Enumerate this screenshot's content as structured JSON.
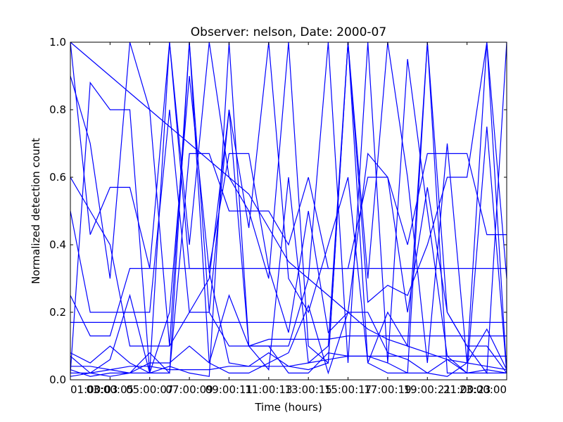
{
  "chart_data": {
    "type": "line",
    "title": "Observer: nelson, Date: 2000-07",
    "xlabel": "Time (hours)",
    "ylabel": "Normalized detection count",
    "x_ticks": [
      "01:00:03",
      "03:00:05",
      "05:00:07",
      "07:00:09",
      "09:00:11",
      "11:00:13",
      "13:00:15",
      "15:00:17",
      "17:00:19",
      "19:00:21",
      "21:00:23",
      "23:00:00"
    ],
    "xlim": [
      1,
      23
    ],
    "ylim": [
      0,
      1
    ],
    "y_ticks": [
      "0.0",
      "0.2",
      "0.4",
      "0.6",
      "0.8",
      "1.0"
    ],
    "line_color": "#0000ff",
    "series": [
      {
        "x": [
          1,
          2,
          3,
          4,
          5,
          6,
          7,
          8,
          9,
          10,
          11,
          12,
          13,
          14,
          15,
          16,
          17,
          18,
          19,
          20,
          21,
          22,
          23
        ],
        "y": [
          0.02,
          0.02,
          0.03,
          0.02,
          0.02,
          0.04,
          0.02,
          0.01,
          1.0,
          0.1,
          0.03,
          0.6,
          0.05,
          0.1,
          1.0,
          0.05,
          0.02,
          0.02,
          1.0,
          0.02,
          0.02,
          0.03,
          0.02
        ]
      },
      {
        "x": [
          1,
          2,
          3,
          4,
          5,
          6,
          7,
          8,
          9,
          10,
          11,
          12,
          13,
          14,
          15,
          16,
          17,
          18,
          19,
          20,
          21,
          22,
          23
        ],
        "y": [
          1.0,
          0.43,
          0.57,
          0.57,
          0.33,
          1.0,
          0.33,
          0.33,
          0.67,
          0.67,
          0.33,
          0.14,
          0.5,
          0.14,
          0.2,
          0.67,
          0.6,
          0.2,
          0.57,
          0.2,
          0.1,
          0.1,
          0.02
        ]
      },
      {
        "x": [
          1,
          2,
          3,
          4,
          5,
          6,
          7,
          8,
          9,
          10,
          11,
          12,
          13,
          14,
          15,
          16,
          17,
          18,
          19,
          20,
          21,
          22,
          23
        ],
        "y": [
          0.9,
          0.7,
          0.3,
          1.0,
          0.8,
          0.1,
          1.0,
          0.2,
          0.8,
          0.45,
          1.0,
          0.3,
          0.2,
          0.4,
          0.6,
          0.05,
          0.2,
          0.1,
          1.0,
          0.2,
          0.1,
          0.02,
          1.0
        ]
      },
      {
        "x": [
          1,
          2,
          3,
          4,
          5,
          6,
          7,
          8,
          9,
          10,
          11,
          12,
          13,
          14,
          15,
          16,
          17,
          18,
          19,
          20,
          21,
          22,
          23
        ],
        "y": [
          0.02,
          0.88,
          0.8,
          0.8,
          0.02,
          1.0,
          0.4,
          1.0,
          0.6,
          0.5,
          0.3,
          1.0,
          0.1,
          0.05,
          1.0,
          0.3,
          1.0,
          0.6,
          0.05,
          0.7,
          0.05,
          1.0,
          0.02
        ]
      },
      {
        "x": [
          1,
          2,
          3,
          4,
          5,
          6,
          7,
          8,
          9,
          10,
          11,
          12,
          13,
          14,
          15,
          16,
          17,
          18,
          19,
          20,
          21,
          22,
          23
        ],
        "y": [
          0.5,
          0.2,
          0.2,
          0.2,
          0.2,
          0.8,
          0.2,
          0.3,
          0.8,
          0.1,
          0.1,
          0.1,
          0.3,
          1.0,
          0.05,
          1.0,
          0.05,
          0.95,
          0.5,
          0.07,
          0.02,
          0.75,
          0.02
        ]
      },
      {
        "x": [
          1,
          2,
          3,
          4,
          5,
          6,
          7,
          8,
          9,
          10,
          11,
          12,
          13,
          14,
          15,
          16,
          17,
          18,
          19,
          20,
          21,
          22,
          23
        ],
        "y": [
          0.07,
          0.02,
          0.06,
          0.25,
          0.02,
          0.02,
          0.67,
          0.67,
          0.5,
          0.5,
          0.5,
          0.4,
          0.6,
          0.33,
          0.33,
          0.6,
          0.6,
          0.4,
          0.67,
          0.67,
          0.67,
          0.43,
          0.43
        ]
      },
      {
        "x": [
          1,
          2,
          3,
          4,
          5,
          6,
          7,
          8,
          9,
          10,
          11,
          12,
          13,
          14,
          15,
          16,
          17,
          18,
          19,
          20,
          21,
          22,
          23
        ],
        "y": [
          0.25,
          0.13,
          0.13,
          0.33,
          0.33,
          0.33,
          0.33,
          0.33,
          0.33,
          0.33,
          0.33,
          0.33,
          0.33,
          0.33,
          0.33,
          0.33,
          0.33,
          0.33,
          0.33,
          0.33,
          0.33,
          0.33,
          0.33
        ]
      },
      {
        "x": [
          1,
          2,
          3,
          4,
          5,
          6,
          7,
          8,
          9,
          10,
          11,
          12,
          13,
          14,
          15,
          16,
          17,
          18,
          19,
          20,
          21,
          22,
          23
        ],
        "y": [
          0.17,
          0.17,
          0.17,
          0.17,
          0.17,
          0.17,
          0.17,
          0.17,
          0.17,
          0.17,
          0.17,
          0.17,
          0.17,
          0.17,
          0.17,
          0.17,
          0.17,
          0.17,
          0.17,
          0.17,
          0.17,
          0.17,
          0.17
        ]
      },
      {
        "x": [
          1,
          2,
          3,
          4,
          5,
          6,
          7,
          8,
          9,
          10,
          11,
          12,
          13,
          14,
          15,
          16,
          17,
          18,
          19,
          20,
          21,
          22,
          23
        ],
        "y": [
          0.08,
          0.05,
          0.1,
          0.05,
          0.02,
          0.2,
          0.9,
          0.32,
          0.05,
          0.04,
          0.08,
          0.04,
          0.03,
          0.05,
          1.0,
          0.23,
          0.28,
          0.25,
          0.4,
          0.6,
          0.6,
          1.0,
          0.3
        ]
      },
      {
        "x": [
          1,
          2,
          3,
          4,
          5,
          6,
          7,
          8,
          9,
          10,
          11,
          12,
          13,
          14,
          15,
          16,
          17,
          18,
          19,
          20,
          21,
          22,
          23
        ],
        "y": [
          0.6,
          0.5,
          0.4,
          0.1,
          0.1,
          0.1,
          0.2,
          0.2,
          0.1,
          0.1,
          0.12,
          0.12,
          0.12,
          0.12,
          0.13,
          0.13,
          0.13,
          0.13,
          0.13,
          0.13,
          0.13,
          0.13,
          0.13
        ]
      },
      {
        "x": [
          1,
          2,
          3,
          4,
          5,
          6,
          7,
          8,
          9,
          10,
          11,
          12,
          13,
          14,
          15,
          16,
          17,
          18,
          19,
          20,
          21,
          22,
          23
        ],
        "y": [
          0.03,
          0.01,
          0.02,
          0.02,
          0.08,
          0.02,
          1.0,
          0.05,
          0.25,
          0.1,
          0.1,
          0.02,
          0.02,
          0.08,
          0.07,
          0.07,
          0.05,
          0.02,
          0.02,
          0.01,
          0.05,
          0.15,
          0.03
        ]
      },
      {
        "x": [
          1,
          2,
          3,
          4,
          5,
          6,
          7,
          8,
          9,
          10,
          11,
          12,
          13,
          14,
          15,
          16,
          17,
          18,
          19,
          20,
          21,
          22,
          23
        ],
        "y": [
          0.01,
          0.02,
          0.01,
          0.02,
          0.05,
          0.05,
          0.1,
          0.05,
          0.02,
          0.02,
          0.05,
          0.08,
          0.22,
          0.02,
          0.2,
          0.2,
          0.08,
          0.06,
          0.02,
          0.06,
          0.02,
          0.02,
          0.02
        ]
      },
      {
        "x": [
          1,
          2,
          3,
          4,
          5,
          6,
          7,
          8,
          9,
          10,
          11,
          12,
          13,
          14,
          15,
          16,
          17,
          18,
          19,
          20,
          21,
          22,
          23
        ],
        "y": [
          1.0,
          0.95,
          0.9,
          0.85,
          0.8,
          0.75,
          0.7,
          0.65,
          0.6,
          0.55,
          0.45,
          0.35,
          0.3,
          0.25,
          0.2,
          0.15,
          0.12,
          0.1,
          0.08,
          0.06,
          0.05,
          0.04,
          0.03
        ]
      },
      {
        "x": [
          1,
          2,
          3,
          4,
          5,
          6,
          7,
          8,
          9,
          10,
          11,
          12,
          13,
          14,
          15,
          16,
          17,
          18,
          19,
          20,
          21,
          22,
          23
        ],
        "y": [
          0.04,
          0.04,
          0.03,
          0.04,
          0.04,
          0.03,
          0.03,
          0.03,
          0.04,
          0.04,
          0.04,
          0.04,
          0.05,
          0.06,
          0.07,
          0.07,
          0.07,
          0.07,
          0.07,
          0.07,
          0.07,
          0.07,
          0.07
        ]
      }
    ]
  }
}
